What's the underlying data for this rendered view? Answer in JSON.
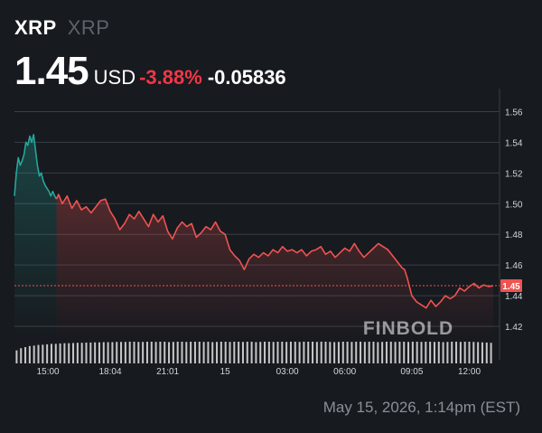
{
  "header": {
    "symbol": "XRP",
    "name": "XRP",
    "price": "1.45",
    "currency": "USD",
    "change_percent": "-3.88%",
    "change_abs": "-0.05836"
  },
  "footer": {
    "timestamp": "May 15, 2026, 1:14pm (EST)"
  },
  "watermark": "FINBOLD",
  "colors": {
    "background": "#171a1f",
    "up": "#26a69a",
    "down": "#ef5350",
    "change_text": "#f23645",
    "grid": "#3a3e46",
    "axis_text": "#d1d4dc",
    "volume": "#e6e6e6"
  },
  "chart_data": {
    "type": "line",
    "title": "",
    "xlabel": "",
    "ylabel": "",
    "ylim": [
      1.41,
      1.575
    ],
    "y_ticks": [
      "1.56",
      "1.54",
      "1.52",
      "1.50",
      "1.48",
      "1.46",
      "1.44",
      "1.42"
    ],
    "x_ticks": [
      {
        "label": "15:00",
        "x": 0.07
      },
      {
        "label": "18:04",
        "x": 0.2
      },
      {
        "label": "21:01",
        "x": 0.32
      },
      {
        "label": "15",
        "x": 0.44
      },
      {
        "label": "03:00",
        "x": 0.57
      },
      {
        "label": "06:00",
        "x": 0.69
      },
      {
        "label": "09:05",
        "x": 0.83
      },
      {
        "label": "12:00",
        "x": 0.95
      }
    ],
    "last_price_label": "1.45",
    "last_price": 1.4465,
    "up_color_until_x": 0.09,
    "series": [
      {
        "x": [
          0,
          0.004,
          0.008,
          0.012,
          0.016,
          0.02,
          0.024,
          0.028,
          0.032,
          0.036,
          0.04,
          0.044,
          0.048,
          0.052,
          0.056,
          0.06,
          0.064,
          0.068,
          0.072,
          0.076,
          0.08,
          0.084,
          0.088,
          0.092,
          0.1,
          0.11,
          0.12,
          0.13,
          0.14,
          0.15,
          0.16,
          0.17,
          0.18,
          0.19,
          0.2,
          0.21,
          0.22,
          0.23,
          0.24,
          0.25,
          0.26,
          0.27,
          0.28,
          0.29,
          0.3,
          0.31,
          0.32,
          0.33,
          0.34,
          0.35,
          0.36,
          0.37,
          0.38,
          0.39,
          0.4,
          0.41,
          0.42,
          0.43,
          0.44,
          0.45,
          0.46,
          0.47,
          0.48,
          0.49,
          0.5,
          0.51,
          0.52,
          0.53,
          0.54,
          0.55,
          0.56,
          0.57,
          0.58,
          0.59,
          0.6,
          0.61,
          0.62,
          0.63,
          0.64,
          0.65,
          0.66,
          0.67,
          0.68,
          0.69,
          0.7,
          0.71,
          0.72,
          0.73,
          0.74,
          0.75,
          0.76,
          0.77,
          0.78,
          0.79,
          0.8,
          0.805,
          0.81,
          0.815,
          0.82,
          0.83,
          0.84,
          0.85,
          0.86,
          0.87,
          0.88,
          0.89,
          0.9,
          0.91,
          0.92,
          0.93,
          0.94,
          0.95,
          0.96,
          0.97,
          0.98,
          0.99,
          1.0
        ],
        "y": [
          1.505,
          1.52,
          1.53,
          1.525,
          1.528,
          1.532,
          1.54,
          1.538,
          1.544,
          1.54,
          1.545,
          1.535,
          1.525,
          1.518,
          1.52,
          1.515,
          1.512,
          1.51,
          1.508,
          1.505,
          1.508,
          1.505,
          1.503,
          1.506,
          1.5,
          1.505,
          1.497,
          1.502,
          1.496,
          1.498,
          1.494,
          1.498,
          1.502,
          1.503,
          1.495,
          1.49,
          1.483,
          1.487,
          1.493,
          1.49,
          1.495,
          1.49,
          1.485,
          1.493,
          1.488,
          1.492,
          1.482,
          1.477,
          1.484,
          1.488,
          1.485,
          1.487,
          1.478,
          1.481,
          1.485,
          1.483,
          1.488,
          1.482,
          1.48,
          1.47,
          1.466,
          1.463,
          1.457,
          1.464,
          1.467,
          1.465,
          1.468,
          1.466,
          1.47,
          1.468,
          1.472,
          1.469,
          1.47,
          1.468,
          1.47,
          1.466,
          1.469,
          1.47,
          1.472,
          1.467,
          1.469,
          1.465,
          1.468,
          1.471,
          1.469,
          1.474,
          1.469,
          1.465,
          1.468,
          1.471,
          1.474,
          1.472,
          1.47,
          1.466,
          1.462,
          1.46,
          1.458,
          1.457,
          1.452,
          1.44,
          1.436,
          1.434,
          1.432,
          1.437,
          1.433,
          1.436,
          1.44,
          1.438,
          1.44,
          1.445,
          1.443,
          1.446,
          1.448,
          1.445,
          1.447,
          1.446,
          1.4465
        ]
      }
    ],
    "volume": [
      0.6,
      0.7,
      0.75,
      0.8,
      0.82,
      0.85,
      0.86,
      0.88,
      0.9,
      0.9,
      0.92,
      0.93,
      0.93,
      0.94,
      0.95,
      0.95,
      0.96,
      0.96,
      0.97,
      0.97,
      0.98,
      0.98,
      0.98,
      0.99,
      0.99,
      0.99,
      1.0,
      1.0,
      0.99,
      0.99,
      1.0,
      1.0,
      0.99,
      1.0,
      1.0,
      0.98,
      0.99,
      1.0,
      1.0,
      0.99,
      1.0,
      1.0,
      1.0,
      0.99,
      1.0,
      0.98,
      0.99,
      1.0,
      1.0,
      0.99,
      1.0,
      1.0,
      0.99,
      1.0,
      1.0,
      0.98,
      0.99,
      1.0,
      1.0,
      0.99,
      1.0,
      1.0,
      0.99,
      1.0,
      1.0,
      0.99,
      1.0,
      1.0,
      1.0,
      0.99,
      1.0,
      1.0,
      0.99,
      0.98,
      0.99,
      1.0,
      1.0,
      0.99,
      1.0,
      1.0,
      0.99,
      1.0,
      1.0,
      0.98,
      0.99,
      1.0,
      1.0,
      0.99,
      1.0,
      1.0,
      0.99,
      1.0,
      1.0,
      0.99,
      1.0,
      1.0,
      0.99,
      1.0,
      0.98,
      0.99,
      1.0,
      1.0,
      0.99,
      1.0,
      1.0,
      0.99,
      0.98,
      0.97,
      0.96,
      0.95
    ]
  }
}
